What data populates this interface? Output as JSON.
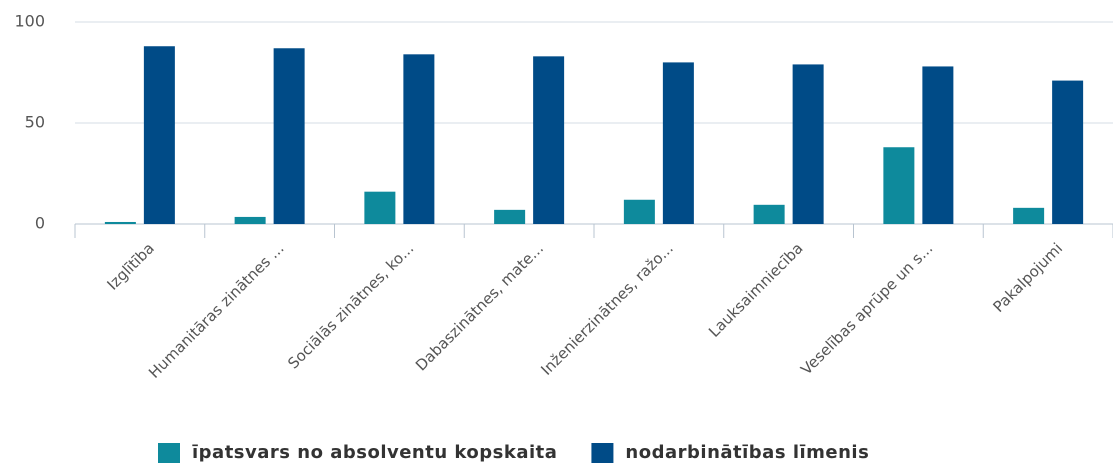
{
  "chart_data": {
    "type": "bar",
    "categories": [
      "Izglītība",
      "Humanitāras zinātnes ...",
      "Sociālās zinātnes, ko...",
      "Dabaszinātnes, mate...",
      "Inženierzinātnes, ražo...",
      "Lauksaimniecība",
      "Veselības aprūpe un s...",
      "Pakalpojumi"
    ],
    "series": [
      {
        "name": "īpatsvars no absolventu kopskaita",
        "color": "#0e8a9c",
        "values": [
          1,
          3.5,
          16,
          7,
          12,
          9.5,
          38,
          8
        ]
      },
      {
        "name": "nodarbinātības līmenis",
        "color": "#004b87",
        "values": [
          88,
          87,
          84,
          83,
          80,
          79,
          78,
          71
        ]
      }
    ],
    "ylim": [
      0,
      100
    ],
    "yticks": [
      0,
      50,
      100
    ],
    "grid": true,
    "legend": "bottom"
  }
}
